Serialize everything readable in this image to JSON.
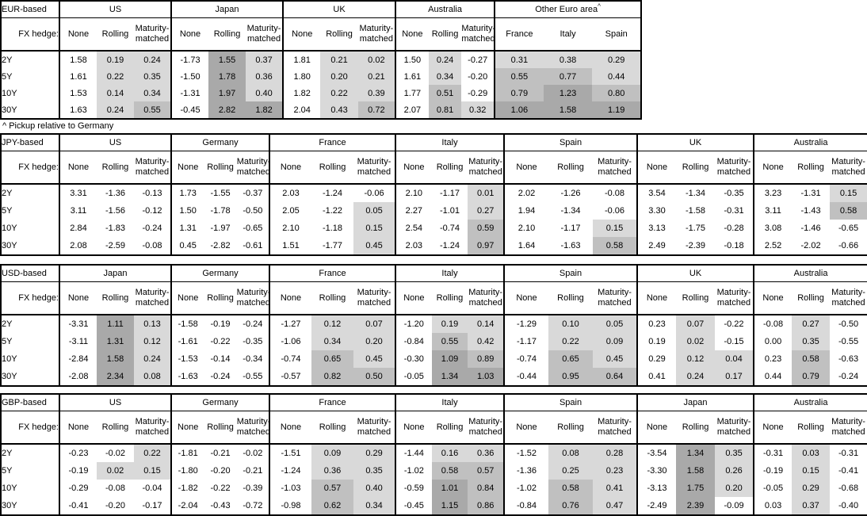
{
  "note": "^ Pickup relative to Germany",
  "fx_hedge_label": "FX hedge:",
  "row_labels": [
    "2Y",
    "5Y",
    "10Y",
    "30Y"
  ],
  "default_cols": [
    "None",
    "Rolling",
    "Maturity-matched"
  ],
  "shading": {
    "light": "#d9d9d9",
    "mid": "#c0c0c0",
    "dark": "#a9a9a9",
    "rule": "Rolling and Maturity-matched cells (and all Other-Euro-area cells) shaded by value: 0 to 0.5 light, 0.5 to 1.0 mid, 1.0+ dark; negative values and None columns unshaded"
  },
  "tables": [
    {
      "base_label": "EUR-based",
      "groups": [
        {
          "name": "US",
          "rows": [
            [
              "1.58",
              "0.19",
              "0.24"
            ],
            [
              "1.61",
              "0.22",
              "0.35"
            ],
            [
              "1.53",
              "0.14",
              "0.34"
            ],
            [
              "1.63",
              "0.24",
              "0.55"
            ]
          ]
        },
        {
          "name": "Japan",
          "rows": [
            [
              "-1.73",
              "1.55",
              "0.37"
            ],
            [
              "-1.50",
              "1.78",
              "0.36"
            ],
            [
              "-1.31",
              "1.97",
              "0.40"
            ],
            [
              "-0.45",
              "2.82",
              "1.82"
            ]
          ]
        },
        {
          "name": "UK",
          "rows": [
            [
              "1.81",
              "0.21",
              "0.02"
            ],
            [
              "1.80",
              "0.20",
              "0.21"
            ],
            [
              "1.82",
              "0.22",
              "0.39"
            ],
            [
              "2.04",
              "0.43",
              "0.72"
            ]
          ]
        },
        {
          "name": "Australia",
          "rows": [
            [
              "1.50",
              "0.24",
              "-0.27"
            ],
            [
              "1.61",
              "0.34",
              "-0.20"
            ],
            [
              "1.77",
              "0.51",
              "-0.29"
            ],
            [
              "2.07",
              "0.81",
              "0.32"
            ]
          ]
        },
        {
          "name": "Other Euro area",
          "sup": "^",
          "cols": [
            "France",
            "Italy",
            "Spain"
          ],
          "shade_all": true,
          "rows": [
            [
              "0.31",
              "0.38",
              "0.29"
            ],
            [
              "0.55",
              "0.77",
              "0.44"
            ],
            [
              "0.79",
              "1.23",
              "0.80"
            ],
            [
              "1.06",
              "1.58",
              "1.19"
            ]
          ]
        }
      ]
    },
    {
      "base_label": "JPY-based",
      "groups": [
        {
          "name": "US",
          "rows": [
            [
              "3.31",
              "-1.36",
              "-0.13"
            ],
            [
              "3.11",
              "-1.56",
              "-0.12"
            ],
            [
              "2.84",
              "-1.83",
              "-0.24"
            ],
            [
              "2.08",
              "-2.59",
              "-0.08"
            ]
          ]
        },
        {
          "name": "Germany",
          "rows": [
            [
              "1.73",
              "-1.55",
              "-0.37"
            ],
            [
              "1.50",
              "-1.78",
              "-0.50"
            ],
            [
              "1.31",
              "-1.97",
              "-0.65"
            ],
            [
              "0.45",
              "-2.82",
              "-0.61"
            ]
          ]
        },
        {
          "name": "France",
          "rows": [
            [
              "2.03",
              "-1.24",
              "-0.06"
            ],
            [
              "2.05",
              "-1.22",
              "0.05"
            ],
            [
              "2.10",
              "-1.18",
              "0.15"
            ],
            [
              "1.51",
              "-1.77",
              "0.45"
            ]
          ]
        },
        {
          "name": "Italy",
          "rows": [
            [
              "2.10",
              "-1.17",
              "0.01"
            ],
            [
              "2.27",
              "-1.01",
              "0.27"
            ],
            [
              "2.54",
              "-0.74",
              "0.59"
            ],
            [
              "2.03",
              "-1.24",
              "0.97"
            ]
          ]
        },
        {
          "name": "Spain",
          "rows": [
            [
              "2.02",
              "-1.26",
              "-0.08"
            ],
            [
              "1.94",
              "-1.34",
              "-0.06"
            ],
            [
              "2.10",
              "-1.17",
              "0.15"
            ],
            [
              "1.64",
              "-1.63",
              "0.58"
            ]
          ]
        },
        {
          "name": "UK",
          "rows": [
            [
              "3.54",
              "-1.34",
              "-0.35"
            ],
            [
              "3.30",
              "-1.58",
              "-0.31"
            ],
            [
              "3.13",
              "-1.75",
              "-0.28"
            ],
            [
              "2.49",
              "-2.39",
              "-0.18"
            ]
          ]
        },
        {
          "name": "Australia",
          "rows": [
            [
              "3.23",
              "-1.31",
              "0.15"
            ],
            [
              "3.11",
              "-1.43",
              "0.58"
            ],
            [
              "3.08",
              "-1.46",
              "-0.65"
            ],
            [
              "2.52",
              "-2.02",
              "-0.66"
            ]
          ]
        }
      ]
    },
    {
      "base_label": "USD-based",
      "groups": [
        {
          "name": "Japan",
          "rows": [
            [
              "-3.31",
              "1.11",
              "0.13"
            ],
            [
              "-3.11",
              "1.31",
              "0.12"
            ],
            [
              "-2.84",
              "1.58",
              "0.24"
            ],
            [
              "-2.08",
              "2.34",
              "0.08"
            ]
          ]
        },
        {
          "name": "Germany",
          "rows": [
            [
              "-1.58",
              "-0.19",
              "-0.24"
            ],
            [
              "-1.61",
              "-0.22",
              "-0.35"
            ],
            [
              "-1.53",
              "-0.14",
              "-0.34"
            ],
            [
              "-1.63",
              "-0.24",
              "-0.55"
            ]
          ]
        },
        {
          "name": "France",
          "rows": [
            [
              "-1.27",
              "0.12",
              "0.07"
            ],
            [
              "-1.06",
              "0.34",
              "0.20"
            ],
            [
              "-0.74",
              "0.65",
              "0.45"
            ],
            [
              "-0.57",
              "0.82",
              "0.50"
            ]
          ]
        },
        {
          "name": "Italy",
          "rows": [
            [
              "-1.20",
              "0.19",
              "0.14"
            ],
            [
              "-0.84",
              "0.55",
              "0.42"
            ],
            [
              "-0.30",
              "1.09",
              "0.89"
            ],
            [
              "-0.05",
              "1.34",
              "1.03"
            ]
          ]
        },
        {
          "name": "Spain",
          "rows": [
            [
              "-1.29",
              "0.10",
              "0.05"
            ],
            [
              "-1.17",
              "0.22",
              "0.09"
            ],
            [
              "-0.74",
              "0.65",
              "0.45"
            ],
            [
              "-0.44",
              "0.95",
              "0.64"
            ]
          ]
        },
        {
          "name": "UK",
          "rows": [
            [
              "0.23",
              "0.07",
              "-0.22"
            ],
            [
              "0.19",
              "0.02",
              "-0.15"
            ],
            [
              "0.29",
              "0.12",
              "0.04"
            ],
            [
              "0.41",
              "0.24",
              "0.17"
            ]
          ]
        },
        {
          "name": "Australia",
          "rows": [
            [
              "-0.08",
              "0.27",
              "-0.50"
            ],
            [
              "0.00",
              "0.35",
              "-0.55"
            ],
            [
              "0.23",
              "0.58",
              "-0.63"
            ],
            [
              "0.44",
              "0.79",
              "-0.24"
            ]
          ]
        }
      ]
    },
    {
      "base_label": "GBP-based",
      "groups": [
        {
          "name": "US",
          "rows": [
            [
              "-0.23",
              "-0.02",
              "0.22"
            ],
            [
              "-0.19",
              "0.02",
              "0.15"
            ],
            [
              "-0.29",
              "-0.08",
              "-0.04"
            ],
            [
              "-0.41",
              "-0.20",
              "-0.17"
            ]
          ]
        },
        {
          "name": "Germany",
          "rows": [
            [
              "-1.81",
              "-0.21",
              "-0.02"
            ],
            [
              "-1.80",
              "-0.20",
              "-0.21"
            ],
            [
              "-1.82",
              "-0.22",
              "-0.39"
            ],
            [
              "-2.04",
              "-0.43",
              "-0.72"
            ]
          ]
        },
        {
          "name": "France",
          "rows": [
            [
              "-1.51",
              "0.09",
              "0.29"
            ],
            [
              "-1.24",
              "0.36",
              "0.35"
            ],
            [
              "-1.03",
              "0.57",
              "0.40"
            ],
            [
              "-0.98",
              "0.62",
              "0.34"
            ]
          ]
        },
        {
          "name": "Italy",
          "rows": [
            [
              "-1.44",
              "0.16",
              "0.36"
            ],
            [
              "-1.02",
              "0.58",
              "0.57"
            ],
            [
              "-0.59",
              "1.01",
              "0.84"
            ],
            [
              "-0.45",
              "1.15",
              "0.86"
            ]
          ]
        },
        {
          "name": "Spain",
          "rows": [
            [
              "-1.52",
              "0.08",
              "0.28"
            ],
            [
              "-1.36",
              "0.25",
              "0.23"
            ],
            [
              "-1.02",
              "0.58",
              "0.41"
            ],
            [
              "-0.84",
              "0.76",
              "0.47"
            ]
          ]
        },
        {
          "name": "Japan",
          "rows": [
            [
              "-3.54",
              "1.34",
              "0.35"
            ],
            [
              "-3.30",
              "1.58",
              "0.26"
            ],
            [
              "-3.13",
              "1.75",
              "0.20"
            ],
            [
              "-2.49",
              "2.39",
              "-0.09"
            ]
          ]
        },
        {
          "name": "Australia",
          "rows": [
            [
              "-0.31",
              "0.03",
              "-0.31"
            ],
            [
              "-0.19",
              "0.15",
              "-0.41"
            ],
            [
              "-0.05",
              "0.29",
              "-0.68"
            ],
            [
              "0.03",
              "0.37",
              "-0.40"
            ]
          ]
        }
      ]
    }
  ]
}
